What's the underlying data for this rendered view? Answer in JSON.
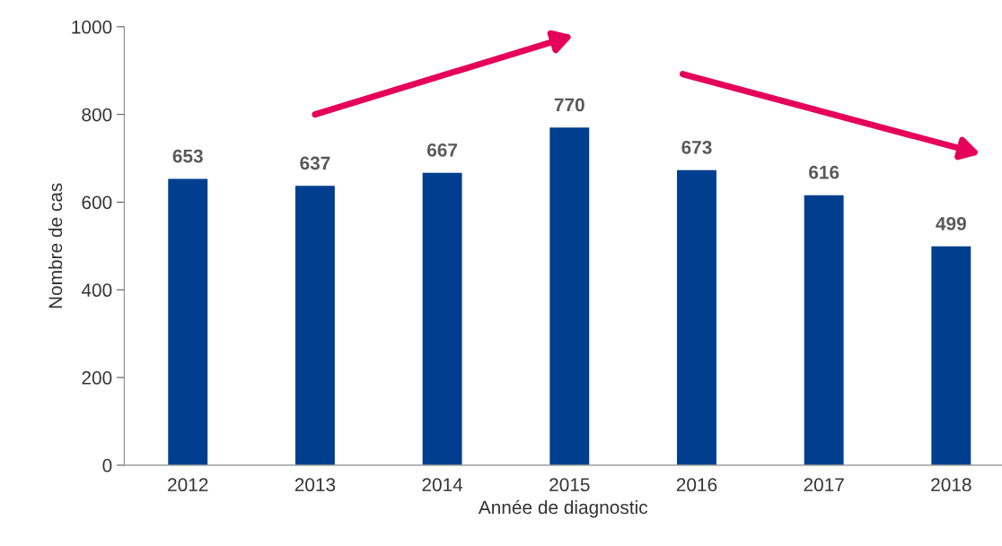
{
  "chart_data": {
    "type": "bar",
    "categories": [
      "2012",
      "2013",
      "2014",
      "2015",
      "2016",
      "2017",
      "2018"
    ],
    "values": [
      653,
      637,
      667,
      770,
      673,
      616,
      499
    ],
    "color": "#003f8f",
    "xlabel": "Année de diagnostic",
    "ylabel": "Nombre de cas",
    "ylim": [
      0,
      1000
    ],
    "yticks": [
      0,
      200,
      400,
      600,
      800,
      1000
    ],
    "data_labels": true,
    "grid": false,
    "legend": false
  }
}
